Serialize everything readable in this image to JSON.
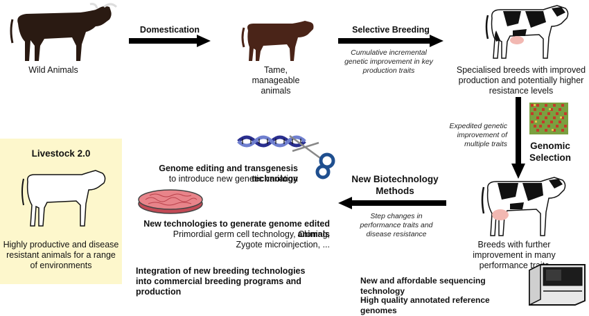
{
  "stages": {
    "wild": "Wild Animals",
    "tame": "Tame, manageable animals",
    "specialised": "Specialised breeds with improved production and potentially higher resistance levels",
    "further": "Breeds with further improvement in many performance traits"
  },
  "arrows": {
    "domestication": "Domestication",
    "selective_breeding": "Selective Breeding",
    "selective_note": "Cumulative incremental genetic improvement in key production traits",
    "genomic_note": "Expedited genetic improvement of multiple traits",
    "genomic_selection": "Genomic Selection",
    "biotech": "New Biotechnology Methods",
    "biotech_note": "Step changes in performance traits and disease resistance"
  },
  "livestock": {
    "title": "Livestock 2.0",
    "description": "Highly productive and disease resistant animals for a range of environments"
  },
  "biotech_items": {
    "genome_editing_title": "Genome editing and transgenesis technology",
    "genome_editing_sub": "to introduce new genetic variation",
    "new_tech_title": "New technologies to generate genome edited animals",
    "new_tech_sub1": "Primordial germ cell technology, Cloning,",
    "new_tech_sub2": "Zygote microinjection, ...",
    "integration": "Integration of new breeding technologies into commercial breeding programs and production"
  },
  "sequencing": {
    "affordable": "New and affordable sequencing technology",
    "reference": "High quality annotated reference genomes"
  },
  "colors": {
    "wild_animal": "#2a1a12",
    "tame_animal": "#4a2418",
    "panel_bg": "#fdf7cc",
    "dna_blue": "#2a2f8f",
    "dna_light": "#6f7fcf",
    "dish_pink": "#e8848a",
    "scissors": "#1f4f8f",
    "chip_red": "#c43a2a",
    "chip_green": "#7aa040"
  },
  "icons": [
    "wild-cattle-icon",
    "tame-cattle-icon",
    "holstein-cow-icon",
    "snp-chip-icon",
    "dna-scissors-icon",
    "petri-dish-icon",
    "cow-outline-icon",
    "sequencer-icon"
  ]
}
